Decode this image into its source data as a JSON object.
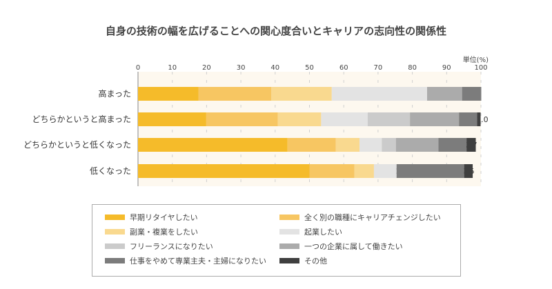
{
  "chart_data": {
    "type": "bar",
    "orientation": "horizontal",
    "stacked": true,
    "title": "自身の技術の幅を広げることへの関心度合いとキャリアの志向性の関係性",
    "unit_label": "単位(%)",
    "xlim": [
      0,
      100
    ],
    "xticks": [
      0,
      10,
      20,
      30,
      40,
      50,
      60,
      70,
      80,
      90,
      100
    ],
    "grid": true,
    "legend_position": "bottom",
    "categories": [
      "高まった",
      "どちらかというと高まった",
      "どちらかというと低くなった",
      "低くなった"
    ],
    "series": [
      {
        "name": "早期リタイヤしたい",
        "color": "#f5bb2a",
        "values": [
          17.6,
          19.9,
          43.6,
          50.0
        ]
      },
      {
        "name": "全く別の職種にキャリアチェンジしたい",
        "color": "#f7c662",
        "values": [
          21.3,
          20.9,
          14.1,
          13.1
        ]
      },
      {
        "name": "副業・複業をしたい",
        "color": "#f9d98f",
        "values": [
          17.6,
          12.6,
          6.9,
          5.7
        ]
      },
      {
        "name": "起業したい",
        "color": "#e3e3e3",
        "values": [
          27.8,
          13.6,
          6.5,
          6.6
        ]
      },
      {
        "name": "フリーランスになりたい",
        "color": "#cbcbcb",
        "values": [
          0,
          12.3,
          4.1,
          0.0
        ]
      },
      {
        "name": "一つの企業に属して働きたい",
        "color": "#ababab",
        "values": [
          10.2,
          14.3,
          12.4,
          0.0
        ]
      },
      {
        "name": "仕事をやめて専業主夫・主婦になりたい",
        "color": "#7c7c7c",
        "values": [
          5.6,
          5.3,
          8.2,
          19.7
        ]
      },
      {
        "name": "その他",
        "color": "#3f3f3f",
        "values": [
          0,
          1.0,
          2.7,
          2.5
        ]
      }
    ],
    "data_labels": [
      [
        "17.6",
        "21.3",
        "17.6",
        "27.8",
        "",
        "10.2",
        "5.6",
        ""
      ],
      [
        "19.9",
        "20.9",
        "12.6",
        "13.6",
        "12.3",
        "14.3",
        "5.3",
        "1.0"
      ],
      [
        "43.6",
        "14.1",
        "6.9",
        "6.5",
        "4.1",
        "12.4",
        "8.2",
        "2.7"
      ],
      [
        "50.0",
        "13.1",
        "5.7",
        "6.6",
        "0.0",
        "0.0",
        "19.7",
        "2.5"
      ]
    ]
  }
}
